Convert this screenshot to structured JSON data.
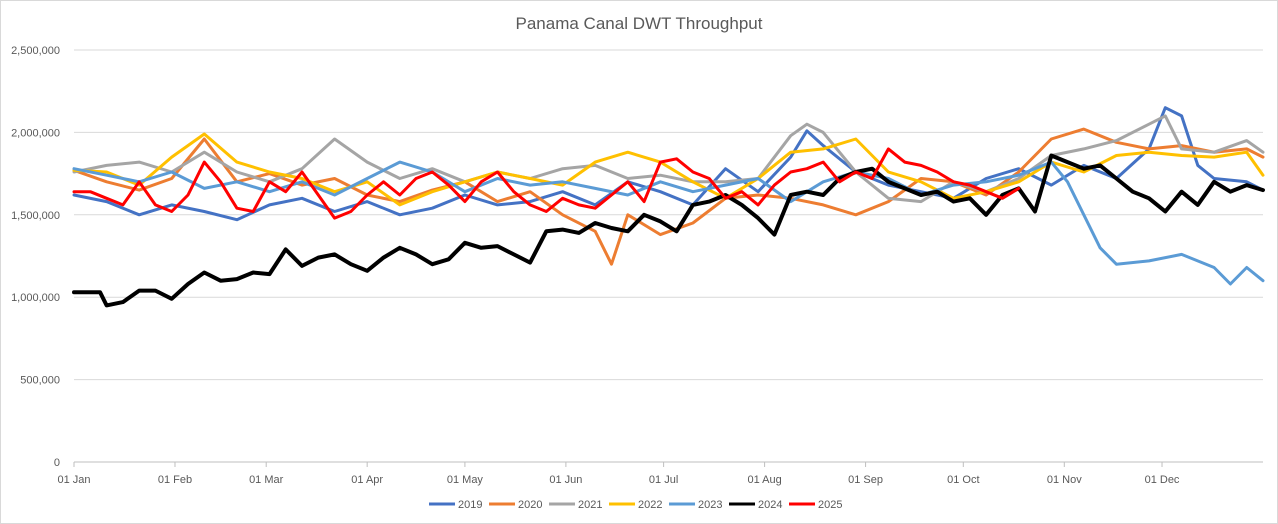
{
  "chart_data": {
    "type": "line",
    "title": "Panama Canal DWT Throughput",
    "xlabel": "",
    "ylabel": "",
    "ylim": [
      0,
      2500000
    ],
    "yticks": [
      0,
      500000,
      1000000,
      1500000,
      2000000,
      2500000
    ],
    "ytick_labels": [
      "0",
      "500,000",
      "1,000,000",
      "1,500,000",
      "2,000,000",
      "2,500,000"
    ],
    "x_day_range": [
      0,
      365
    ],
    "xticks": [
      {
        "label": "01 Jan",
        "day": 0
      },
      {
        "label": "01 Feb",
        "day": 31
      },
      {
        "label": "01 Mar",
        "day": 59
      },
      {
        "label": "01 Apr",
        "day": 90
      },
      {
        "label": "01 May",
        "day": 120
      },
      {
        "label": "01 Jun",
        "day": 151
      },
      {
        "label": "01 Jul",
        "day": 181
      },
      {
        "label": "01 Aug",
        "day": 212
      },
      {
        "label": "01 Sep",
        "day": 243
      },
      {
        "label": "01 Oct",
        "day": 273
      },
      {
        "label": "01 Nov",
        "day": 304
      },
      {
        "label": "01 Dec",
        "day": 334
      }
    ],
    "legend_position": "bottom",
    "grid": true,
    "series": [
      {
        "name": "2019",
        "color": "#4472c4",
        "width": 3,
        "days": [
          0,
          10,
          20,
          30,
          40,
          50,
          60,
          70,
          80,
          90,
          100,
          110,
          120,
          130,
          140,
          150,
          160,
          170,
          180,
          190,
          200,
          210,
          220,
          225,
          230,
          240,
          250,
          260,
          270,
          280,
          290,
          300,
          310,
          320,
          330,
          335,
          340,
          345,
          350,
          360,
          365
        ],
        "values": [
          1620000,
          1580000,
          1500000,
          1560000,
          1520000,
          1470000,
          1560000,
          1600000,
          1520000,
          1580000,
          1500000,
          1540000,
          1620000,
          1560000,
          1580000,
          1640000,
          1560000,
          1700000,
          1640000,
          1560000,
          1780000,
          1640000,
          1850000,
          2010000,
          1920000,
          1760000,
          1680000,
          1640000,
          1600000,
          1720000,
          1780000,
          1680000,
          1800000,
          1720000,
          1900000,
          2150000,
          2100000,
          1800000,
          1720000,
          1700000,
          1650000
        ]
      },
      {
        "name": "2020",
        "color": "#ed7d31",
        "width": 3,
        "days": [
          0,
          10,
          20,
          30,
          40,
          50,
          60,
          70,
          80,
          90,
          100,
          110,
          120,
          130,
          140,
          150,
          160,
          165,
          170,
          180,
          190,
          200,
          210,
          220,
          230,
          240,
          250,
          260,
          270,
          280,
          290,
          300,
          310,
          320,
          330,
          340,
          350,
          360,
          365
        ],
        "values": [
          1770000,
          1700000,
          1650000,
          1720000,
          1960000,
          1700000,
          1750000,
          1680000,
          1720000,
          1620000,
          1580000,
          1650000,
          1700000,
          1580000,
          1640000,
          1500000,
          1400000,
          1200000,
          1500000,
          1380000,
          1450000,
          1600000,
          1620000,
          1600000,
          1560000,
          1500000,
          1580000,
          1720000,
          1700000,
          1620000,
          1760000,
          1960000,
          2020000,
          1940000,
          1900000,
          1920000,
          1880000,
          1900000,
          1850000
        ]
      },
      {
        "name": "2021",
        "color": "#a5a5a5",
        "width": 3,
        "days": [
          0,
          10,
          20,
          30,
          40,
          50,
          60,
          70,
          80,
          90,
          100,
          110,
          120,
          130,
          140,
          150,
          160,
          170,
          180,
          190,
          200,
          210,
          220,
          225,
          230,
          240,
          250,
          260,
          270,
          280,
          290,
          300,
          310,
          320,
          330,
          335,
          340,
          350,
          360,
          365
        ],
        "values": [
          1760000,
          1800000,
          1820000,
          1760000,
          1880000,
          1760000,
          1700000,
          1780000,
          1960000,
          1820000,
          1720000,
          1780000,
          1700000,
          1760000,
          1720000,
          1780000,
          1800000,
          1720000,
          1740000,
          1700000,
          1700000,
          1720000,
          1980000,
          2050000,
          2000000,
          1760000,
          1600000,
          1580000,
          1700000,
          1640000,
          1720000,
          1860000,
          1900000,
          1950000,
          2050000,
          2100000,
          1900000,
          1880000,
          1950000,
          1880000
        ]
      },
      {
        "name": "2022",
        "color": "#ffc000",
        "width": 3,
        "days": [
          0,
          10,
          20,
          30,
          40,
          50,
          60,
          70,
          80,
          90,
          100,
          110,
          120,
          130,
          140,
          150,
          160,
          170,
          180,
          190,
          200,
          210,
          220,
          230,
          240,
          250,
          260,
          270,
          280,
          290,
          300,
          310,
          320,
          330,
          340,
          350,
          360,
          365
        ],
        "values": [
          1770000,
          1760000,
          1680000,
          1850000,
          1990000,
          1820000,
          1760000,
          1720000,
          1640000,
          1700000,
          1560000,
          1640000,
          1700000,
          1760000,
          1720000,
          1680000,
          1820000,
          1880000,
          1820000,
          1700000,
          1600000,
          1720000,
          1880000,
          1900000,
          1960000,
          1760000,
          1700000,
          1600000,
          1640000,
          1700000,
          1820000,
          1760000,
          1860000,
          1880000,
          1860000,
          1850000,
          1880000,
          1740000
        ]
      },
      {
        "name": "2023",
        "color": "#5b9bd5",
        "width": 3,
        "days": [
          0,
          10,
          20,
          30,
          40,
          50,
          60,
          70,
          80,
          90,
          100,
          110,
          120,
          130,
          140,
          150,
          160,
          170,
          180,
          190,
          200,
          210,
          220,
          230,
          240,
          250,
          260,
          270,
          280,
          290,
          300,
          305,
          310,
          315,
          320,
          330,
          340,
          350,
          355,
          360,
          365
        ],
        "values": [
          1780000,
          1740000,
          1700000,
          1760000,
          1660000,
          1700000,
          1640000,
          1700000,
          1620000,
          1720000,
          1820000,
          1760000,
          1640000,
          1720000,
          1680000,
          1700000,
          1660000,
          1620000,
          1700000,
          1640000,
          1680000,
          1720000,
          1580000,
          1700000,
          1760000,
          1720000,
          1620000,
          1680000,
          1700000,
          1740000,
          1820000,
          1700000,
          1500000,
          1300000,
          1200000,
          1220000,
          1260000,
          1180000,
          1080000,
          1180000,
          1100000
        ]
      },
      {
        "name": "2024",
        "color": "#000000",
        "width": 4,
        "days": [
          0,
          8,
          10,
          15,
          20,
          25,
          30,
          35,
          40,
          45,
          50,
          55,
          60,
          65,
          70,
          75,
          80,
          85,
          90,
          95,
          100,
          105,
          110,
          115,
          120,
          125,
          130,
          135,
          140,
          145,
          150,
          155,
          160,
          165,
          170,
          175,
          180,
          185,
          190,
          195,
          200,
          205,
          210,
          215,
          220,
          225,
          230,
          235,
          240,
          245,
          250,
          255,
          260,
          265,
          270,
          275,
          280,
          285,
          290,
          295,
          300,
          305,
          310,
          315,
          320,
          325,
          330,
          335,
          340,
          345,
          350,
          355,
          360,
          365
        ],
        "values": [
          1030000,
          1030000,
          950000,
          970000,
          1040000,
          1040000,
          990000,
          1080000,
          1150000,
          1100000,
          1110000,
          1150000,
          1140000,
          1290000,
          1190000,
          1240000,
          1260000,
          1200000,
          1160000,
          1240000,
          1300000,
          1260000,
          1200000,
          1230000,
          1330000,
          1300000,
          1310000,
          1260000,
          1210000,
          1400000,
          1410000,
          1390000,
          1450000,
          1420000,
          1400000,
          1500000,
          1460000,
          1400000,
          1560000,
          1580000,
          1620000,
          1560000,
          1480000,
          1380000,
          1620000,
          1640000,
          1620000,
          1720000,
          1760000,
          1780000,
          1700000,
          1660000,
          1620000,
          1640000,
          1580000,
          1600000,
          1500000,
          1620000,
          1660000,
          1520000,
          1860000,
          1820000,
          1780000,
          1800000,
          1720000,
          1640000,
          1600000,
          1520000,
          1640000,
          1560000,
          1700000,
          1640000,
          1680000,
          1650000
        ]
      },
      {
        "name": "2025",
        "color": "#ff0000",
        "width": 3,
        "days": [
          0,
          5,
          10,
          15,
          20,
          25,
          30,
          35,
          40,
          45,
          50,
          55,
          60,
          65,
          70,
          75,
          80,
          85,
          90,
          95,
          100,
          105,
          110,
          115,
          120,
          125,
          130,
          135,
          140,
          145,
          150,
          155,
          160,
          165,
          170,
          175,
          180,
          185,
          190,
          195,
          200,
          205,
          210,
          215,
          220,
          225,
          230,
          235,
          240,
          245,
          250,
          255,
          260,
          265,
          270,
          275,
          280,
          285,
          290
        ],
        "values": [
          1640000,
          1640000,
          1600000,
          1560000,
          1700000,
          1560000,
          1520000,
          1620000,
          1820000,
          1700000,
          1540000,
          1520000,
          1700000,
          1640000,
          1760000,
          1620000,
          1480000,
          1520000,
          1620000,
          1700000,
          1620000,
          1720000,
          1760000,
          1680000,
          1580000,
          1700000,
          1760000,
          1640000,
          1560000,
          1520000,
          1600000,
          1560000,
          1540000,
          1620000,
          1700000,
          1580000,
          1820000,
          1840000,
          1760000,
          1720000,
          1600000,
          1640000,
          1560000,
          1680000,
          1760000,
          1780000,
          1820000,
          1700000,
          1760000,
          1720000,
          1900000,
          1820000,
          1800000,
          1760000,
          1700000,
          1680000,
          1640000,
          1600000,
          1660000
        ]
      }
    ]
  }
}
